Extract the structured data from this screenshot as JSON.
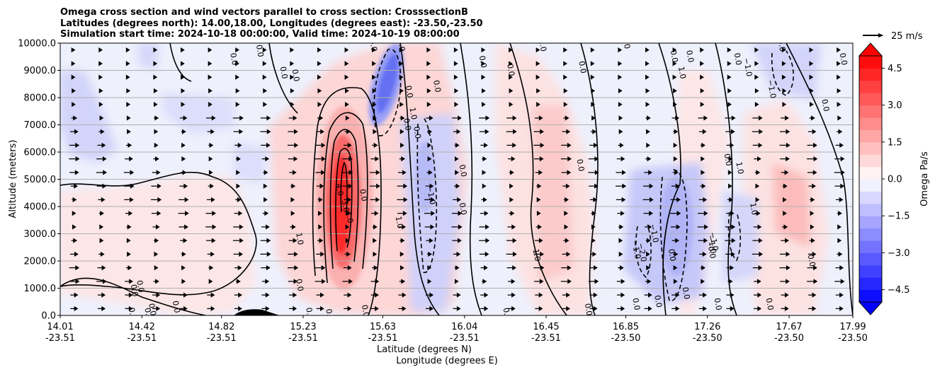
{
  "chart_data": {
    "type": "heatmap",
    "title_lines": [
      "Omega cross section and wind vectors parallel to cross section: CrosssectionB",
      "Latitudes (degrees north): 14.00,18.00, Longitudes (degrees east): -23.50,-23.50",
      "Simulation start time: 2024-10-18 00:00:00, Valid time: 2024-10-19 08:00:00"
    ],
    "xlabel_lines": [
      "Latitude (degrees N)",
      "Longitude (degrees E)"
    ],
    "ylabel": "Altitude (meters)",
    "xlim": [
      14.01,
      17.99
    ],
    "ylim": [
      0,
      10000
    ],
    "x_ticks": [
      {
        "lat": "14.01",
        "lon": "-23.51",
        "pos": 14.01
      },
      {
        "lat": "14.42",
        "lon": "-23.51",
        "pos": 14.42
      },
      {
        "lat": "14.82",
        "lon": "-23.51",
        "pos": 14.82
      },
      {
        "lat": "15.23",
        "lon": "-23.51",
        "pos": 15.23
      },
      {
        "lat": "15.63",
        "lon": "-23.51",
        "pos": 15.63
      },
      {
        "lat": "16.04",
        "lon": "-23.51",
        "pos": 16.04
      },
      {
        "lat": "16.45",
        "lon": "-23.51",
        "pos": 16.45
      },
      {
        "lat": "16.85",
        "lon": "-23.50",
        "pos": 16.85
      },
      {
        "lat": "17.26",
        "lon": "-23.50",
        "pos": 17.26
      },
      {
        "lat": "17.67",
        "lon": "-23.50",
        "pos": 17.67
      },
      {
        "lat": "17.99",
        "lon": "-23.50",
        "pos": 17.99
      }
    ],
    "y_ticks": [
      "0.0",
      "1000.0",
      "2000.0",
      "3000.0",
      "4000.0",
      "5000.0",
      "6000.0",
      "7000.0",
      "8000.0",
      "9000.0",
      "10000.0"
    ],
    "y_grid": true,
    "colorbar": {
      "label": "Omega Pa/s",
      "range": [
        -5,
        5
      ],
      "tick_labels": [
        "4.5",
        "3.0",
        "1.5",
        "0.0",
        "−1.5",
        "−3.0",
        "−4.5"
      ],
      "tick_values": [
        4.5,
        3.0,
        1.5,
        0.0,
        -1.5,
        -3.0,
        -4.5
      ],
      "colormap": "bwr",
      "extend": "both"
    },
    "quiver_key": "25 m/s",
    "contour_labels": [
      {
        "t": "0.0",
        "x": 14.37,
        "y": 900
      },
      {
        "t": "0.0",
        "x": 14.4,
        "y": 1050
      },
      {
        "t": "0.0",
        "x": 14.36,
        "y": 50
      },
      {
        "t": "0.0",
        "x": 14.44,
        "y": 40
      },
      {
        "t": "0.0",
        "x": 14.46,
        "y": 200
      },
      {
        "t": "0.0",
        "x": 14.58,
        "y": 300
      },
      {
        "t": "0.0",
        "x": 14.87,
        "y": 9400
      },
      {
        "t": "0.0",
        "x": 15.0,
        "y": 9700
      },
      {
        "t": "0.0",
        "x": 15.12,
        "y": 8900
      },
      {
        "t": "0.0",
        "x": 15.18,
        "y": 8800
      },
      {
        "t": "0.0",
        "x": 15.2,
        "y": 1100
      },
      {
        "t": "1.0",
        "x": 15.2,
        "y": 2800
      },
      {
        "t": "0.0",
        "x": 15.25,
        "y": 50
      },
      {
        "t": "0.0",
        "x": 15.35,
        "y": 0
      },
      {
        "t": "4.0",
        "x": 15.4,
        "y": 4600
      },
      {
        "t": "3.0",
        "x": 15.43,
        "y": 4000
      },
      {
        "t": "4.0",
        "x": 15.45,
        "y": 3600
      },
      {
        "t": "0.0",
        "x": 15.53,
        "y": 150
      },
      {
        "t": "0.0",
        "x": 15.52,
        "y": 4400
      },
      {
        "t": "0.0",
        "x": 15.57,
        "y": 9900
      },
      {
        "t": "1.0",
        "x": 15.7,
        "y": 3400
      },
      {
        "t": "0.0",
        "x": 15.71,
        "y": 9900
      },
      {
        "t": "0.0",
        "x": 15.74,
        "y": 7000
      },
      {
        "t": "0.0",
        "x": 15.75,
        "y": 8200
      },
      {
        "t": "1.0",
        "x": 15.77,
        "y": 7400
      },
      {
        "t": "0.0",
        "x": 15.79,
        "y": 6700
      },
      {
        "t": "−1.0",
        "x": 15.86,
        "y": 4400
      },
      {
        "t": "0.0",
        "x": 15.89,
        "y": 8400
      },
      {
        "t": "0.0",
        "x": 16.02,
        "y": 5300
      },
      {
        "t": "0.0",
        "x": 16.02,
        "y": 3900
      },
      {
        "t": "0.0",
        "x": 16.12,
        "y": 9300
      },
      {
        "t": "0.0",
        "x": 16.24,
        "y": 40
      },
      {
        "t": "0.0",
        "x": 16.26,
        "y": 9000
      },
      {
        "t": "1.0",
        "x": 16.39,
        "y": 2200
      },
      {
        "t": "1.0",
        "x": 16.42,
        "y": 9900
      },
      {
        "t": "0.0",
        "x": 16.61,
        "y": 5500
      },
      {
        "t": "0.0",
        "x": 16.62,
        "y": 9100
      },
      {
        "t": "0.0",
        "x": 16.65,
        "y": 200
      },
      {
        "t": "0.0",
        "x": 16.84,
        "y": 10000
      },
      {
        "t": "0.0",
        "x": 16.89,
        "y": 400
      },
      {
        "t": "−1.0",
        "x": 16.89,
        "y": 2400
      },
      {
        "t": "−2.0",
        "x": 16.92,
        "y": 2300
      },
      {
        "t": "−1.0",
        "x": 16.98,
        "y": 3000
      },
      {
        "t": "0.0",
        "x": 17.0,
        "y": 500
      },
      {
        "t": "0.0",
        "x": 17.07,
        "y": 2200
      },
      {
        "t": "0.0",
        "x": 17.08,
        "y": 9500
      },
      {
        "t": "1.0",
        "x": 17.12,
        "y": 8900
      },
      {
        "t": "0.0",
        "x": 17.14,
        "y": 800
      },
      {
        "t": "0.0",
        "x": 17.16,
        "y": 9500
      },
      {
        "t": "−1.0",
        "x": 17.27,
        "y": 2600
      },
      {
        "t": "0.0",
        "x": 17.27,
        "y": 2300
      },
      {
        "t": "−1.0",
        "x": 17.28,
        "y": 2700
      },
      {
        "t": "0.0",
        "x": 17.3,
        "y": 400
      },
      {
        "t": "0.0",
        "x": 17.35,
        "y": 5700
      },
      {
        "t": "0.0",
        "x": 17.4,
        "y": 9400
      },
      {
        "t": "1.0",
        "x": 17.41,
        "y": 5400
      },
      {
        "t": "−1.0",
        "x": 17.45,
        "y": 9100
      },
      {
        "t": "1.0",
        "x": 17.48,
        "y": 3900
      },
      {
        "t": "−1.0",
        "x": 17.57,
        "y": 8300
      },
      {
        "t": "0.0",
        "x": 17.56,
        "y": 400
      },
      {
        "t": "0.0",
        "x": 17.62,
        "y": 9900
      },
      {
        "t": "0.0",
        "x": 17.77,
        "y": 2000
      },
      {
        "t": "0.0",
        "x": 17.84,
        "y": 7700
      },
      {
        "t": "0.0",
        "x": 17.93,
        "y": 9400
      }
    ]
  }
}
